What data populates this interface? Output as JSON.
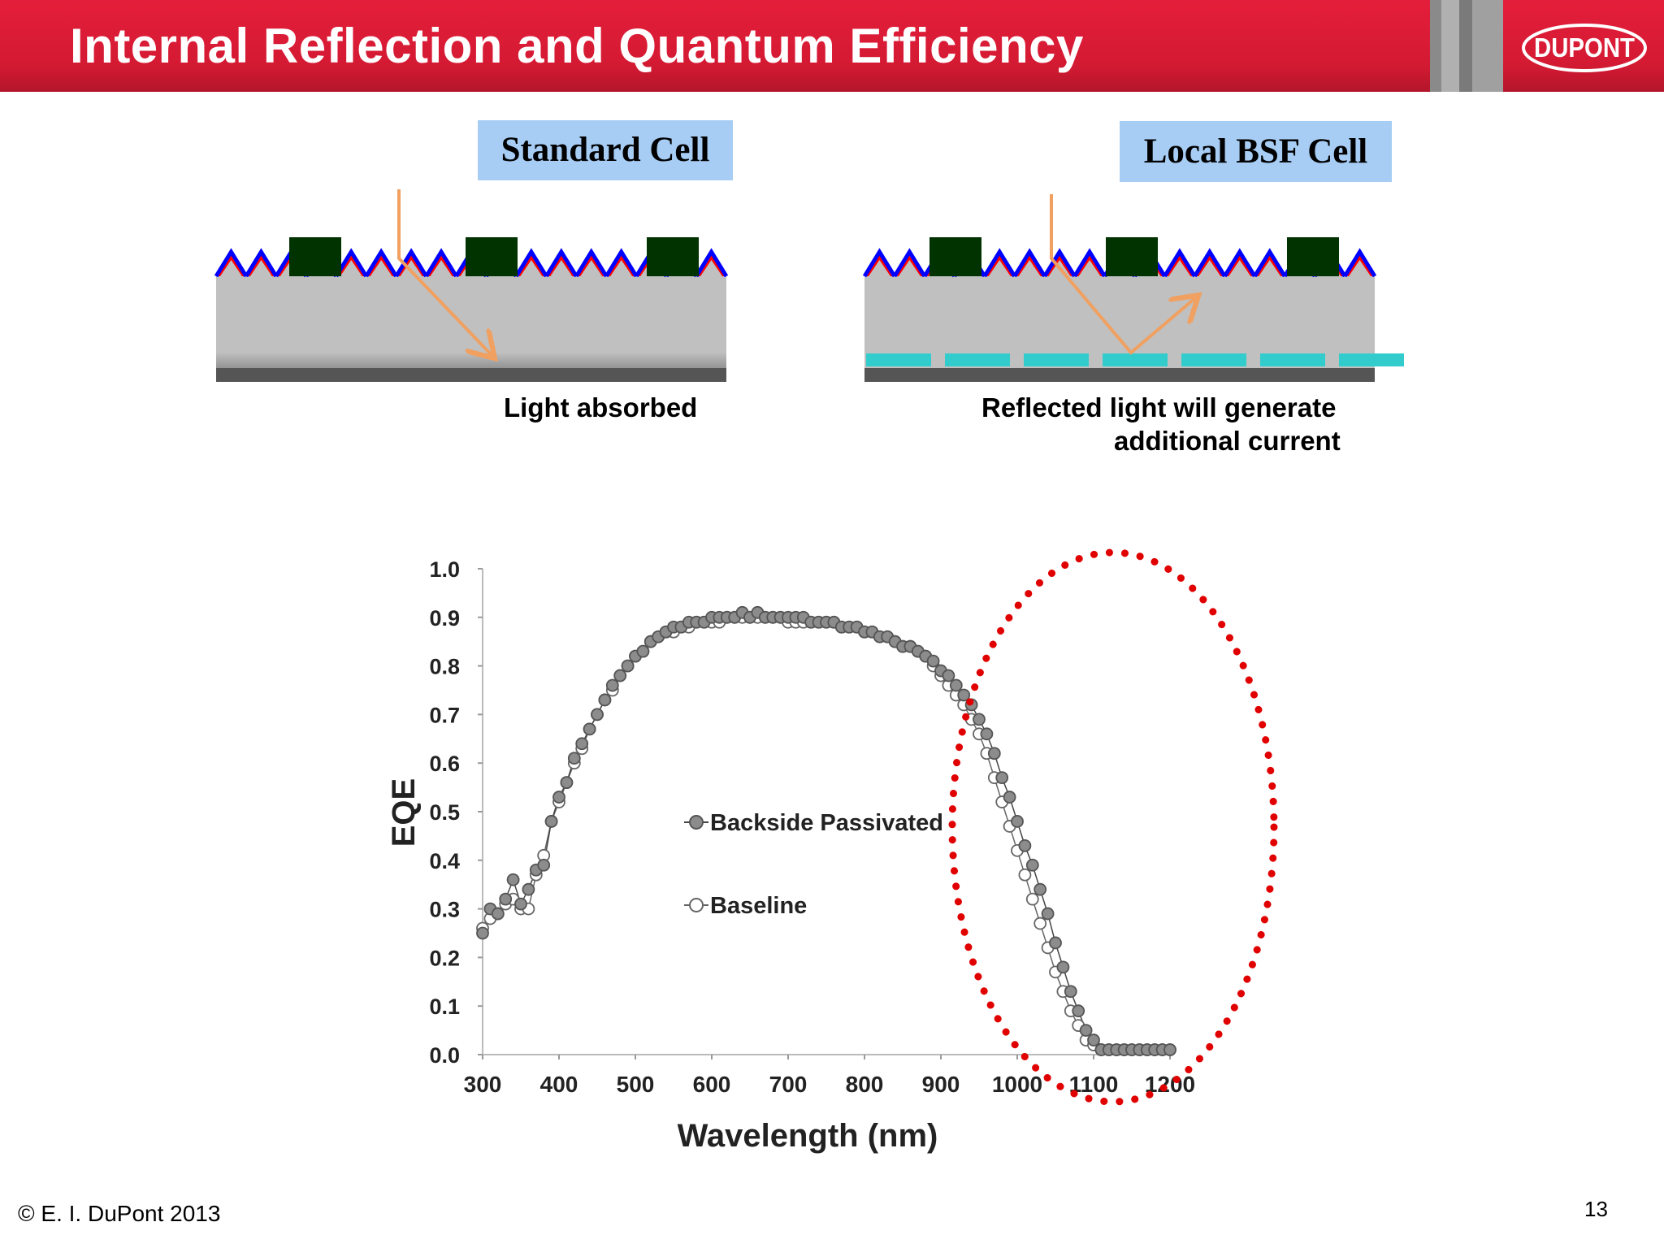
{
  "slide": {
    "title": "Internal Reflection and Quantum Efficiency",
    "logo_text": "DUPONT",
    "copyright": "© E. I. DuPont 2013",
    "page_number": "13"
  },
  "diagrams": {
    "standard": {
      "label": "Standard Cell",
      "caption": "Light absorbed"
    },
    "local_bsf": {
      "label": "Local BSF Cell",
      "caption_line1": "Reflected light will generate",
      "caption_line2": "additional current"
    }
  },
  "colors": {
    "header_red": "#e41e3a",
    "label_bg": "#a7cdf5",
    "wafer_gray": "#c0c0c0",
    "contact_dark": "#003300",
    "arrow_orange": "#f0a060",
    "texture_blue": "#0000ff",
    "texture_red": "#ff0000",
    "bsf_cyan": "#33cccc",
    "highlight_red": "#e00000"
  },
  "chart_data": {
    "type": "scatter",
    "xlabel": "Wavelength (nm)",
    "ylabel": "EQE",
    "xlim": [
      300,
      1200
    ],
    "ylim": [
      0,
      1.0
    ],
    "x_ticks": [
      "300",
      "400",
      "500",
      "600",
      "700",
      "800",
      "900",
      "1000",
      "1100",
      "1200"
    ],
    "y_ticks": [
      "0.0",
      "0.1",
      "0.2",
      "0.3",
      "0.4",
      "0.5",
      "0.6",
      "0.7",
      "0.8",
      "0.9",
      "1.0"
    ],
    "legend_position": "center",
    "annotation": "red dotted ellipse highlighting 950-1200 nm region",
    "series": [
      {
        "name": "Backside Passivated",
        "marker": "filled-gray-circle",
        "x": [
          300,
          310,
          320,
          330,
          340,
          350,
          360,
          370,
          380,
          390,
          400,
          410,
          420,
          430,
          440,
          450,
          460,
          470,
          480,
          490,
          500,
          510,
          520,
          530,
          540,
          550,
          560,
          570,
          580,
          590,
          600,
          610,
          620,
          630,
          640,
          650,
          660,
          670,
          680,
          690,
          700,
          710,
          720,
          730,
          740,
          750,
          760,
          770,
          780,
          790,
          800,
          810,
          820,
          830,
          840,
          850,
          860,
          870,
          880,
          890,
          900,
          910,
          920,
          930,
          940,
          950,
          960,
          970,
          980,
          990,
          1000,
          1010,
          1020,
          1030,
          1040,
          1050,
          1060,
          1070,
          1080,
          1090,
          1100,
          1110,
          1120,
          1130,
          1140,
          1150,
          1160,
          1170,
          1180,
          1190,
          1200
        ],
        "y": [
          0.25,
          0.3,
          0.29,
          0.32,
          0.36,
          0.31,
          0.34,
          0.38,
          0.39,
          0.48,
          0.53,
          0.56,
          0.61,
          0.64,
          0.67,
          0.7,
          0.73,
          0.76,
          0.78,
          0.8,
          0.82,
          0.83,
          0.85,
          0.86,
          0.87,
          0.88,
          0.88,
          0.89,
          0.89,
          0.89,
          0.9,
          0.9,
          0.9,
          0.9,
          0.91,
          0.9,
          0.91,
          0.9,
          0.9,
          0.9,
          0.9,
          0.9,
          0.9,
          0.89,
          0.89,
          0.89,
          0.89,
          0.88,
          0.88,
          0.88,
          0.87,
          0.87,
          0.86,
          0.86,
          0.85,
          0.84,
          0.84,
          0.83,
          0.82,
          0.81,
          0.79,
          0.78,
          0.76,
          0.74,
          0.72,
          0.69,
          0.66,
          0.62,
          0.57,
          0.53,
          0.48,
          0.43,
          0.39,
          0.34,
          0.29,
          0.23,
          0.18,
          0.13,
          0.09,
          0.05,
          0.03,
          0.01,
          0.01,
          0.01,
          0.01,
          0.01,
          0.01,
          0.01,
          0.01,
          0.01,
          0.01
        ]
      },
      {
        "name": "Baseline",
        "marker": "open-circle",
        "x": [
          300,
          310,
          320,
          330,
          340,
          350,
          360,
          370,
          380,
          390,
          400,
          410,
          420,
          430,
          440,
          450,
          460,
          470,
          480,
          490,
          500,
          510,
          520,
          530,
          540,
          550,
          560,
          570,
          580,
          590,
          600,
          610,
          620,
          630,
          640,
          650,
          660,
          670,
          680,
          690,
          700,
          710,
          720,
          730,
          740,
          750,
          760,
          770,
          780,
          790,
          800,
          810,
          820,
          830,
          840,
          850,
          860,
          870,
          880,
          890,
          900,
          910,
          920,
          930,
          940,
          950,
          960,
          970,
          980,
          990,
          1000,
          1010,
          1020,
          1030,
          1040,
          1050,
          1060,
          1070,
          1080,
          1090,
          1100,
          1110,
          1120,
          1130,
          1140,
          1150,
          1160,
          1170,
          1180,
          1190,
          1200
        ],
        "y": [
          0.26,
          0.28,
          0.29,
          0.31,
          0.32,
          0.3,
          0.3,
          0.37,
          0.41,
          0.48,
          0.52,
          0.56,
          0.6,
          0.63,
          0.67,
          0.7,
          0.73,
          0.75,
          0.78,
          0.8,
          0.82,
          0.83,
          0.85,
          0.86,
          0.87,
          0.87,
          0.88,
          0.88,
          0.89,
          0.89,
          0.89,
          0.89,
          0.9,
          0.9,
          0.9,
          0.9,
          0.9,
          0.9,
          0.9,
          0.9,
          0.89,
          0.89,
          0.89,
          0.89,
          0.89,
          0.89,
          0.89,
          0.88,
          0.88,
          0.88,
          0.87,
          0.87,
          0.86,
          0.86,
          0.85,
          0.84,
          0.84,
          0.83,
          0.82,
          0.8,
          0.78,
          0.76,
          0.74,
          0.72,
          0.69,
          0.66,
          0.62,
          0.57,
          0.52,
          0.47,
          0.42,
          0.37,
          0.32,
          0.27,
          0.22,
          0.17,
          0.13,
          0.09,
          0.06,
          0.03,
          0.02,
          0.01,
          0.01,
          0.01,
          0.01,
          0.01,
          0.01,
          0.01,
          0.01,
          0.01,
          0.01
        ]
      }
    ]
  }
}
